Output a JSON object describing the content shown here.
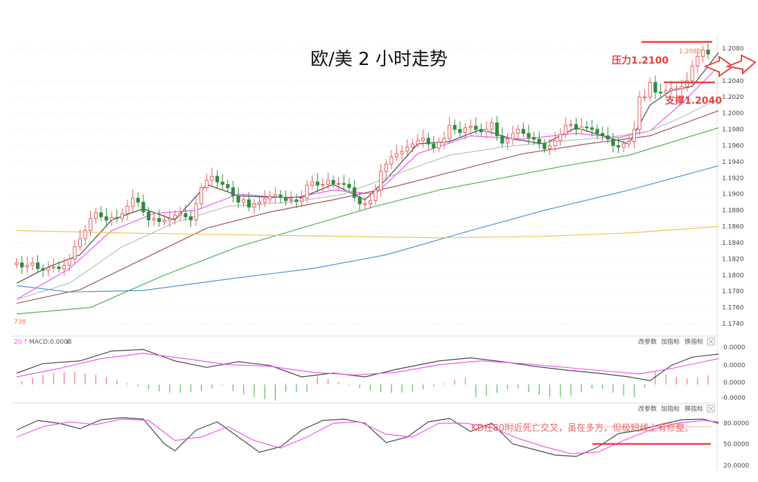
{
  "chart_data": {
    "type": "candlestick",
    "title": "欧/美  2 小时走势",
    "price_axis": {
      "ticks": [
        "1.2080",
        "1.2040",
        "1.2020",
        "1.2000",
        "1.1980",
        "1.1960",
        "1.1940",
        "1.1920",
        "1.1900",
        "1.1880",
        "1.1860",
        "1.1840",
        "1.1820",
        "1.1800",
        "1.1780",
        "1.1760",
        "1.1740"
      ],
      "ylim": [
        1.1732,
        1.2092
      ]
    },
    "price_labels": {
      "high_marker": "1.2080",
      "left_marker": "738"
    },
    "annotations": {
      "resistance": {
        "label": "压力1.2100",
        "value": 1.2088
      },
      "support": {
        "label": "支撑1.2040",
        "value": 1.2038
      },
      "kd_note": "KD在80附近死亡交叉，虽在多方，但极短线上有修整。"
    },
    "candles": {
      "open": [
        1.1813,
        1.1815,
        1.181,
        1.1812,
        1.1815,
        1.1808,
        1.1806,
        1.1809,
        1.181,
        1.1808,
        1.1812,
        1.182,
        1.1835,
        1.1845,
        1.1855,
        1.187,
        1.1877,
        1.1872,
        1.1868,
        1.1871,
        1.187,
        1.1876,
        1.1885,
        1.1895,
        1.189,
        1.1878,
        1.1868,
        1.187,
        1.1866,
        1.1868,
        1.187,
        1.1874,
        1.1876,
        1.1872,
        1.1868,
        1.1888,
        1.1908,
        1.1917,
        1.1922,
        1.1915,
        1.1912,
        1.1908,
        1.1898,
        1.189,
        1.1893,
        1.1884,
        1.1888,
        1.189,
        1.1894,
        1.1897,
        1.1899,
        1.1896,
        1.1892,
        1.1893,
        1.1891,
        1.1895,
        1.1911,
        1.1915,
        1.1911,
        1.1912,
        1.1917,
        1.1913,
        1.1913,
        1.1912,
        1.1908,
        1.1896,
        1.1888,
        1.1888,
        1.1892,
        1.1905,
        1.1928,
        1.1937,
        1.1946,
        1.195,
        1.1953,
        1.1958,
        1.1962,
        1.1966,
        1.1969,
        1.1962,
        1.1957,
        1.1964,
        1.1969,
        1.1985,
        1.198,
        1.1976,
        1.1982,
        1.1984,
        1.198,
        1.1977,
        1.198,
        1.1988,
        1.1972,
        1.1963,
        1.1968,
        1.1975,
        1.198,
        1.1975,
        1.197,
        1.1968,
        1.1962,
        1.1956,
        1.196,
        1.1966,
        1.1974,
        1.1985,
        1.1986,
        1.198,
        1.1983,
        1.1982,
        1.198,
        1.1975,
        1.1972,
        1.1968,
        1.196,
        1.1958,
        1.1962,
        1.1965,
        1.198,
        1.202,
        1.202,
        1.2038,
        1.2026,
        1.2025,
        1.2028,
        1.203,
        1.203,
        1.2033,
        1.204,
        1.2058,
        1.207,
        1.2078
      ],
      "close": [
        1.1815,
        1.181,
        1.1812,
        1.1815,
        1.1808,
        1.1806,
        1.1809,
        1.181,
        1.1808,
        1.1812,
        1.182,
        1.1835,
        1.1845,
        1.1855,
        1.187,
        1.1877,
        1.1872,
        1.1868,
        1.1871,
        1.187,
        1.1876,
        1.1885,
        1.1895,
        1.189,
        1.1878,
        1.1868,
        1.187,
        1.1866,
        1.1868,
        1.187,
        1.1874,
        1.1876,
        1.1872,
        1.1868,
        1.1888,
        1.1908,
        1.1917,
        1.1922,
        1.1915,
        1.1912,
        1.1908,
        1.1898,
        1.189,
        1.1893,
        1.1884,
        1.1888,
        1.189,
        1.1894,
        1.1897,
        1.1899,
        1.1896,
        1.1892,
        1.1893,
        1.1891,
        1.1895,
        1.1911,
        1.1915,
        1.1911,
        1.1912,
        1.1917,
        1.1913,
        1.1913,
        1.1912,
        1.1908,
        1.1896,
        1.1888,
        1.1888,
        1.1892,
        1.1905,
        1.1928,
        1.1937,
        1.1946,
        1.195,
        1.1953,
        1.1958,
        1.1962,
        1.1966,
        1.1969,
        1.1962,
        1.1957,
        1.1964,
        1.1969,
        1.1985,
        1.198,
        1.1976,
        1.1982,
        1.1984,
        1.198,
        1.1977,
        1.198,
        1.1988,
        1.1972,
        1.1963,
        1.1968,
        1.1975,
        1.198,
        1.1975,
        1.197,
        1.1968,
        1.1962,
        1.1956,
        1.196,
        1.1966,
        1.1974,
        1.1985,
        1.1986,
        1.198,
        1.1983,
        1.1982,
        1.198,
        1.1975,
        1.1972,
        1.1968,
        1.196,
        1.1958,
        1.1962,
        1.1965,
        1.198,
        1.202,
        1.202,
        1.2038,
        1.2026,
        1.2025,
        1.2028,
        1.203,
        1.203,
        1.2033,
        1.204,
        1.2058,
        1.207,
        1.2078,
        1.2073
      ]
    },
    "moving_averages": [
      {
        "color": "#444444",
        "points": [
          [
            0,
            1.179
          ],
          [
            6,
            1.181
          ],
          [
            12,
            1.1825
          ],
          [
            18,
            1.1868
          ],
          [
            24,
            1.1882
          ],
          [
            30,
            1.1868
          ],
          [
            36,
            1.1912
          ],
          [
            42,
            1.1898
          ],
          [
            48,
            1.1896
          ],
          [
            54,
            1.1896
          ],
          [
            60,
            1.1912
          ],
          [
            66,
            1.1893
          ],
          [
            70,
            1.1918
          ],
          [
            76,
            1.1962
          ],
          [
            82,
            1.1965
          ],
          [
            88,
            1.198
          ],
          [
            94,
            1.1968
          ],
          [
            100,
            1.1962
          ],
          [
            106,
            1.1982
          ],
          [
            112,
            1.197
          ],
          [
            116,
            1.1962
          ],
          [
            120,
            1.201
          ],
          [
            124,
            1.2028
          ],
          [
            128,
            1.2033
          ],
          [
            133,
            1.2075
          ]
        ]
      },
      {
        "color": "#ee55ee",
        "points": [
          [
            0,
            1.177
          ],
          [
            10,
            1.1808
          ],
          [
            18,
            1.1855
          ],
          [
            26,
            1.1876
          ],
          [
            34,
            1.188
          ],
          [
            42,
            1.19
          ],
          [
            52,
            1.1895
          ],
          [
            60,
            1.1905
          ],
          [
            68,
            1.19
          ],
          [
            76,
            1.195
          ],
          [
            86,
            1.1972
          ],
          [
            96,
            1.1968
          ],
          [
            106,
            1.1975
          ],
          [
            114,
            1.197
          ],
          [
            120,
            1.1978
          ],
          [
            126,
            1.2012
          ],
          [
            133,
            1.2058
          ]
        ]
      },
      {
        "color": "#bbbbbb",
        "points": [
          [
            0,
            1.177
          ],
          [
            10,
            1.179
          ],
          [
            20,
            1.1835
          ],
          [
            30,
            1.1865
          ],
          [
            40,
            1.1885
          ],
          [
            52,
            1.189
          ],
          [
            62,
            1.19
          ],
          [
            72,
            1.1925
          ],
          [
            82,
            1.1948
          ],
          [
            92,
            1.1958
          ],
          [
            102,
            1.1965
          ],
          [
            112,
            1.197
          ],
          [
            120,
            1.1978
          ],
          [
            126,
            1.1995
          ],
          [
            133,
            1.2018
          ]
        ]
      },
      {
        "color": "#a05050",
        "points": [
          [
            0,
            1.1765
          ],
          [
            12,
            1.1782
          ],
          [
            24,
            1.182
          ],
          [
            36,
            1.1858
          ],
          [
            48,
            1.1878
          ],
          [
            60,
            1.1893
          ],
          [
            72,
            1.191
          ],
          [
            84,
            1.193
          ],
          [
            96,
            1.195
          ],
          [
            108,
            1.1962
          ],
          [
            120,
            1.1972
          ],
          [
            133,
            1.2003
          ]
        ]
      },
      {
        "color": "#4caf50",
        "points": [
          [
            0,
            1.1752
          ],
          [
            14,
            1.176
          ],
          [
            28,
            1.18
          ],
          [
            42,
            1.1835
          ],
          [
            56,
            1.1862
          ],
          [
            68,
            1.1885
          ],
          [
            80,
            1.1905
          ],
          [
            92,
            1.192
          ],
          [
            104,
            1.1935
          ],
          [
            116,
            1.1948
          ],
          [
            133,
            1.1982
          ]
        ]
      },
      {
        "color": "#4a90d9",
        "points": [
          [
            0,
            1.1787
          ],
          [
            10,
            1.1779
          ],
          [
            24,
            1.1781
          ],
          [
            40,
            1.1795
          ],
          [
            56,
            1.1808
          ],
          [
            70,
            1.1825
          ],
          [
            86,
            1.1855
          ],
          [
            100,
            1.188
          ],
          [
            116,
            1.1905
          ],
          [
            133,
            1.1935
          ]
        ]
      },
      {
        "color": "#f2c14e",
        "points": [
          [
            0,
            1.1855
          ],
          [
            20,
            1.1852
          ],
          [
            40,
            1.185
          ],
          [
            60,
            1.1848
          ],
          [
            80,
            1.1846
          ],
          [
            100,
            1.1848
          ],
          [
            116,
            1.1852
          ],
          [
            133,
            1.186
          ]
        ]
      }
    ],
    "macd_panel": {
      "label": "MACD:0.0008",
      "left_label": "20",
      "buttons": [
        "改参数",
        "加指标",
        "换指标"
      ],
      "y_ticks": [
        "0.0000",
        "0.0000",
        "0.0000",
        "-0.0000"
      ],
      "dif": [
        [
          0,
          0.3
        ],
        [
          5,
          0.55
        ],
        [
          12,
          0.62
        ],
        [
          18,
          0.88
        ],
        [
          24,
          0.92
        ],
        [
          30,
          0.62
        ],
        [
          36,
          0.45
        ],
        [
          42,
          0.6
        ],
        [
          48,
          0.5
        ],
        [
          54,
          0.2
        ],
        [
          60,
          0.3
        ],
        [
          66,
          0.2
        ],
        [
          72,
          0.4
        ],
        [
          80,
          0.62
        ],
        [
          86,
          0.7
        ],
        [
          92,
          0.6
        ],
        [
          98,
          0.48
        ],
        [
          104,
          0.38
        ],
        [
          110,
          0.3
        ],
        [
          116,
          0.2
        ],
        [
          120,
          0.1
        ],
        [
          124,
          0.5
        ],
        [
          128,
          0.72
        ],
        [
          133,
          0.8
        ]
      ],
      "dea": [
        [
          0,
          0.2
        ],
        [
          8,
          0.42
        ],
        [
          16,
          0.68
        ],
        [
          24,
          0.82
        ],
        [
          32,
          0.68
        ],
        [
          40,
          0.52
        ],
        [
          48,
          0.48
        ],
        [
          56,
          0.32
        ],
        [
          64,
          0.25
        ],
        [
          72,
          0.32
        ],
        [
          80,
          0.52
        ],
        [
          88,
          0.62
        ],
        [
          96,
          0.55
        ],
        [
          104,
          0.45
        ],
        [
          112,
          0.35
        ],
        [
          118,
          0.28
        ],
        [
          124,
          0.42
        ],
        [
          133,
          0.68
        ]
      ],
      "hist_positive": [
        1,
        2,
        3,
        4,
        5,
        6,
        7,
        8,
        9,
        10,
        11,
        12,
        13,
        14,
        15,
        16,
        17,
        18,
        19,
        20,
        21,
        22,
        23,
        24,
        25,
        26,
        27,
        28,
        29,
        30,
        31,
        32,
        33,
        34,
        35,
        36,
        37,
        38,
        39,
        40,
        41,
        42,
        43,
        44,
        45,
        46,
        47,
        48,
        49,
        50,
        51,
        52,
        53,
        54,
        55,
        56,
        57,
        58,
        59,
        60,
        61,
        62,
        63,
        64,
        65,
        66,
        67,
        68,
        69,
        70,
        71,
        72,
        73,
        74,
        75,
        76,
        77,
        78,
        79,
        80,
        81,
        82,
        83,
        84,
        85,
        86,
        87,
        88,
        89,
        90,
        91,
        92,
        93,
        94,
        95,
        96,
        97,
        98,
        99,
        100,
        101,
        102,
        103,
        104,
        105,
        106,
        107,
        108,
        109,
        110,
        111,
        112,
        113,
        114,
        115,
        116,
        117,
        118,
        119,
        120,
        121,
        122,
        123,
        124,
        125,
        126,
        127,
        128,
        129,
        130,
        131,
        132,
        133
      ]
    },
    "kd_panel": {
      "buttons": [
        "改参数",
        "加指标",
        "换指标"
      ],
      "y_ticks": [
        "80.0000",
        "50.0000",
        "20.0000"
      ],
      "k": [
        [
          0,
          70
        ],
        [
          4,
          84
        ],
        [
          8,
          80
        ],
        [
          12,
          72
        ],
        [
          16,
          85
        ],
        [
          20,
          88
        ],
        [
          24,
          86
        ],
        [
          28,
          50
        ],
        [
          30,
          40
        ],
        [
          34,
          70
        ],
        [
          38,
          82
        ],
        [
          42,
          60
        ],
        [
          46,
          38
        ],
        [
          50,
          46
        ],
        [
          54,
          70
        ],
        [
          58,
          84
        ],
        [
          62,
          86
        ],
        [
          66,
          80
        ],
        [
          70,
          52
        ],
        [
          74,
          60
        ],
        [
          78,
          82
        ],
        [
          82,
          87
        ],
        [
          86,
          68
        ],
        [
          90,
          80
        ],
        [
          94,
          50
        ],
        [
          98,
          42
        ],
        [
          102,
          34
        ],
        [
          106,
          32
        ],
        [
          110,
          45
        ],
        [
          114,
          65
        ],
        [
          118,
          70
        ],
        [
          122,
          78
        ],
        [
          126,
          85
        ],
        [
          130,
          86
        ],
        [
          133,
          80
        ]
      ],
      "d": [
        [
          0,
          60
        ],
        [
          5,
          75
        ],
        [
          10,
          82
        ],
        [
          15,
          78
        ],
        [
          20,
          86
        ],
        [
          25,
          84
        ],
        [
          30,
          55
        ],
        [
          35,
          60
        ],
        [
          40,
          75
        ],
        [
          45,
          55
        ],
        [
          50,
          44
        ],
        [
          55,
          60
        ],
        [
          60,
          80
        ],
        [
          65,
          82
        ],
        [
          70,
          64
        ],
        [
          75,
          60
        ],
        [
          80,
          80
        ],
        [
          85,
          80
        ],
        [
          90,
          74
        ],
        [
          95,
          58
        ],
        [
          100,
          46
        ],
        [
          105,
          36
        ],
        [
          110,
          38
        ],
        [
          115,
          55
        ],
        [
          120,
          70
        ],
        [
          125,
          80
        ],
        [
          130,
          84
        ],
        [
          133,
          82
        ]
      ]
    }
  }
}
